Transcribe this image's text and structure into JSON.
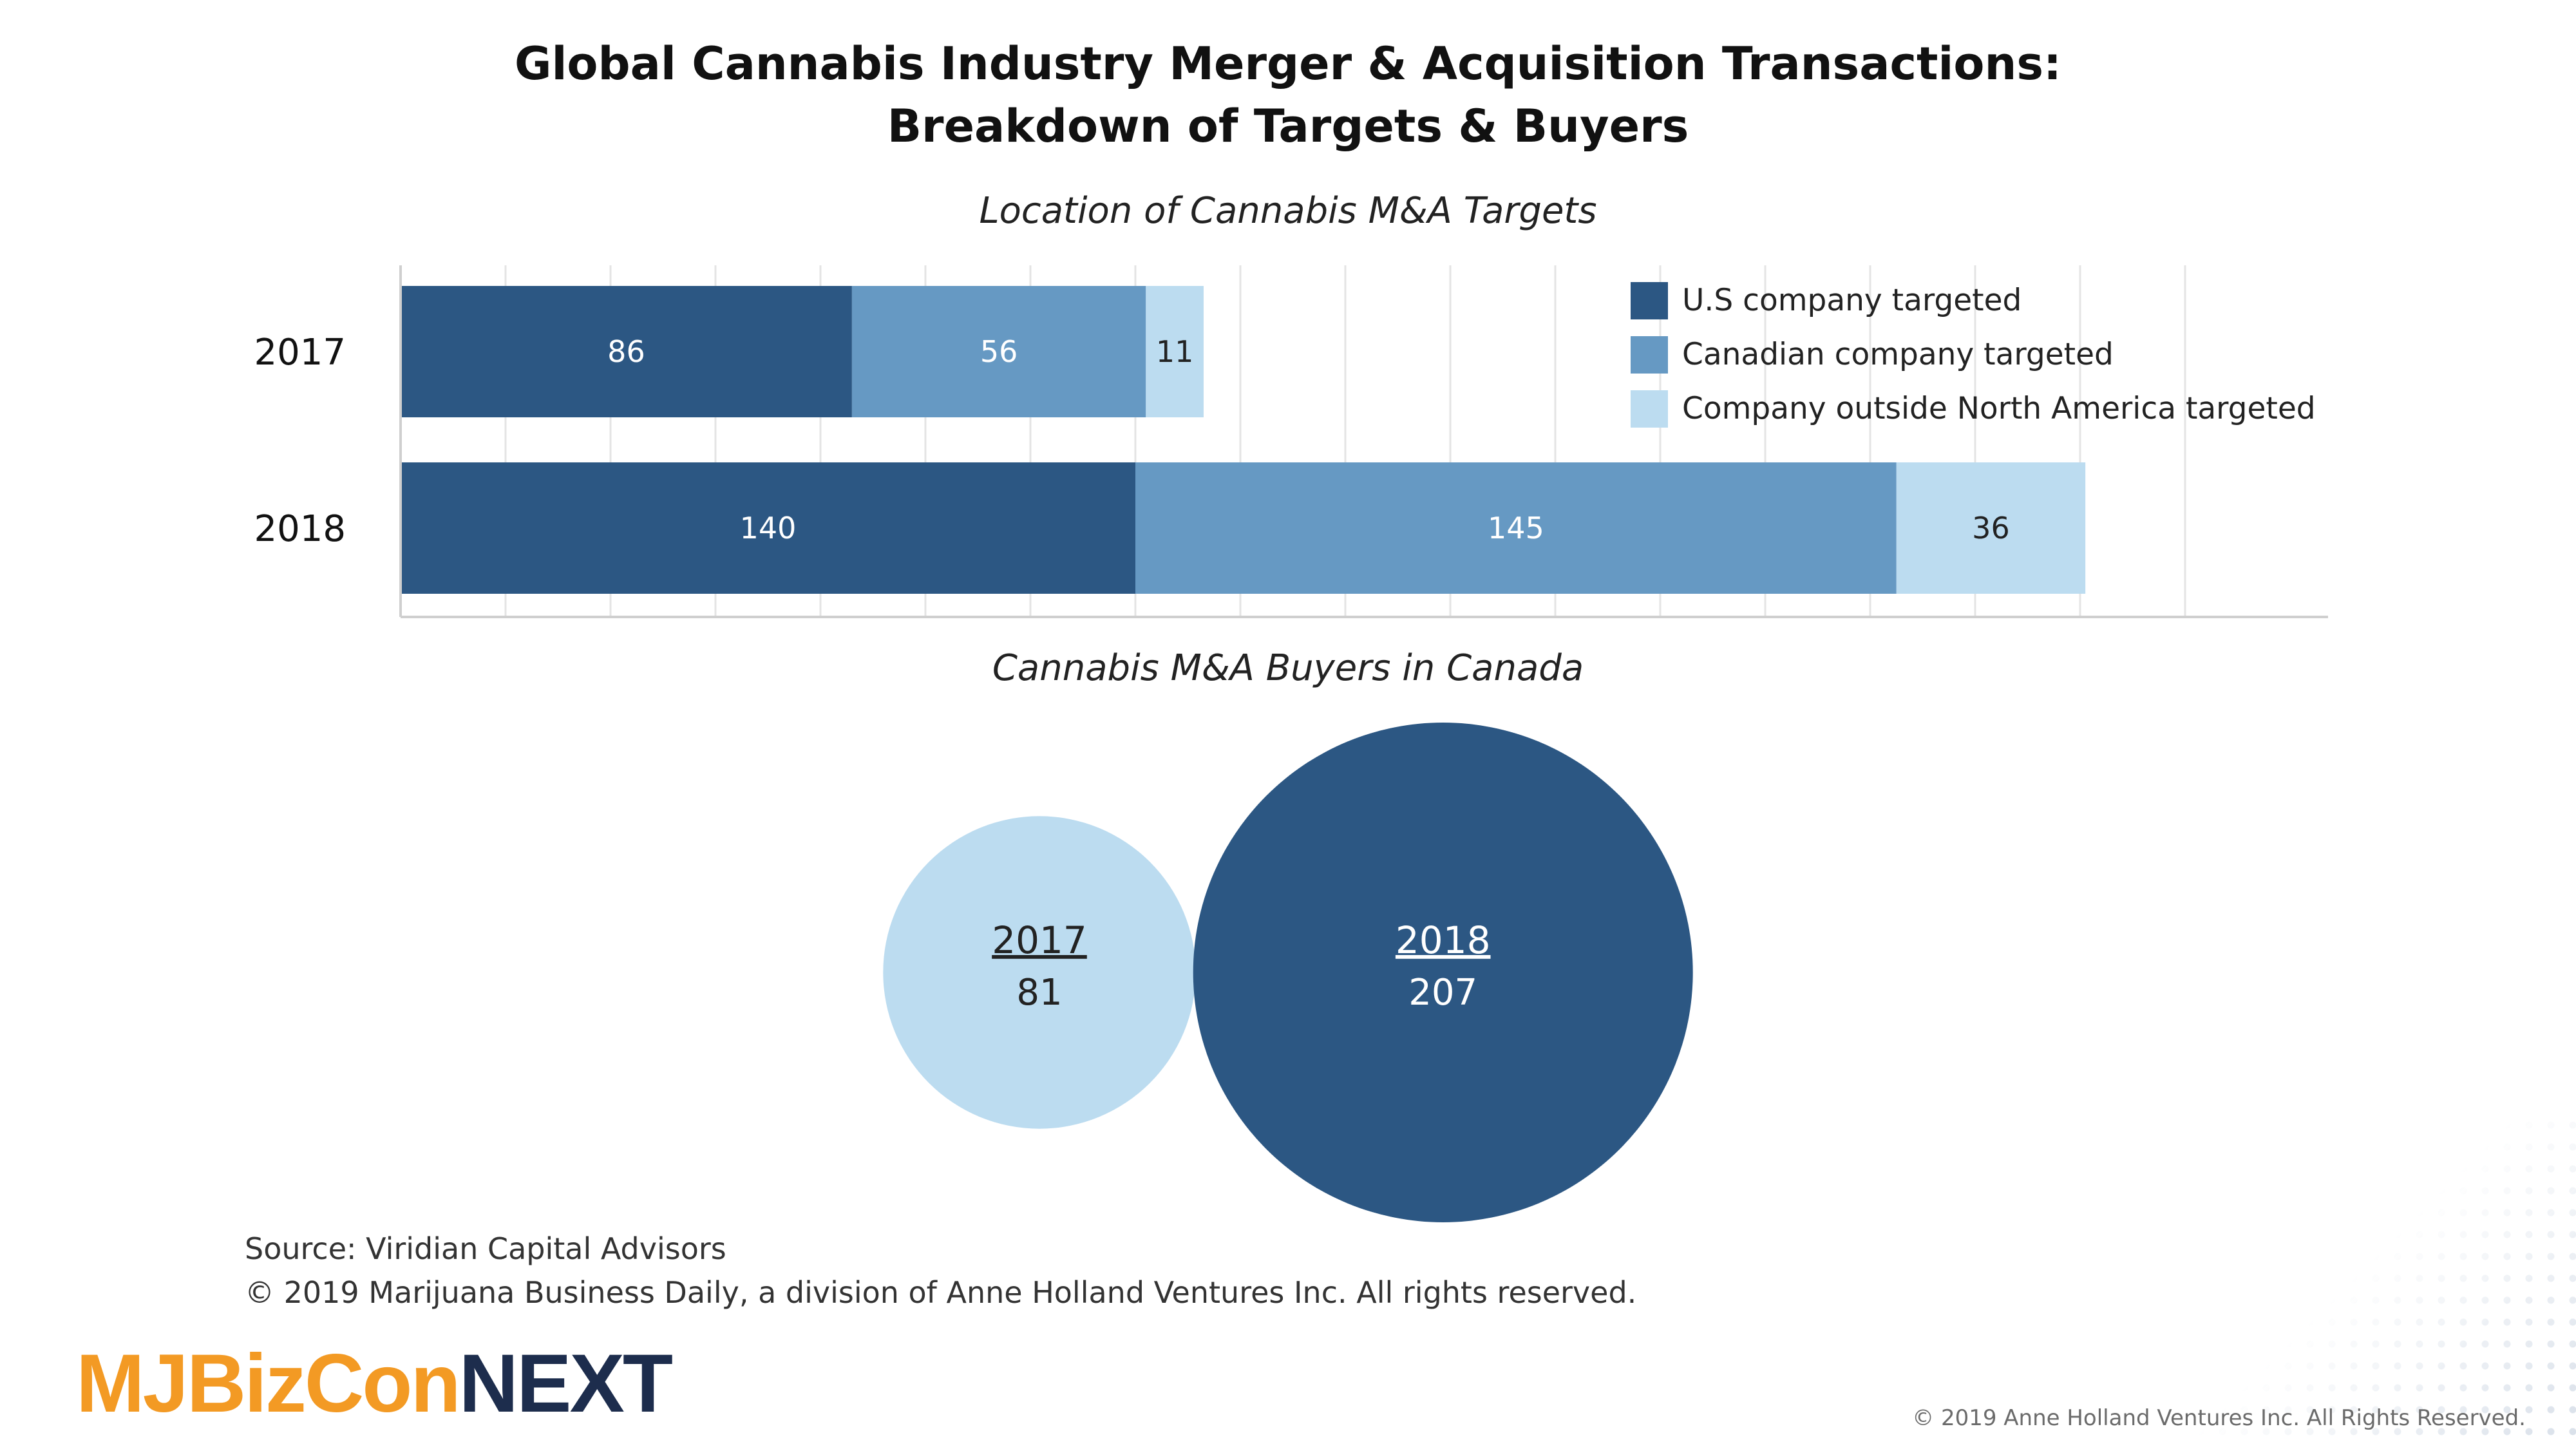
{
  "header": {
    "title_line1": "Global Cannabis Industry Merger & Acquisition Transactions:",
    "title_line2": "Breakdown of Targets & Buyers"
  },
  "chart_data": [
    {
      "type": "bar",
      "orientation": "horizontal",
      "stacked": true,
      "title": "Location of Cannabis M&A Targets",
      "categories": [
        "2017",
        "2018"
      ],
      "series": [
        {
          "name": "U.S company targeted",
          "values": [
            86,
            140
          ],
          "color": "#2c5783",
          "label_color": "#ffffff"
        },
        {
          "name": "Canadian company targeted",
          "values": [
            56,
            145
          ],
          "color": "#6699c3",
          "label_color": "#ffffff"
        },
        {
          "name": "Company outside North America targeted",
          "values": [
            11,
            36
          ],
          "color": "#bcdcf0",
          "label_color": "#222222"
        }
      ],
      "xlim": [
        0,
        340
      ],
      "x_gridline_step": 20,
      "grid": true,
      "legend_position": "top-right"
    },
    {
      "type": "bubble",
      "title": "Cannabis M&A Buyers in Canada",
      "points": [
        {
          "label": "2017",
          "value": 81,
          "color": "#bcdcf0",
          "text_color": "#222222"
        },
        {
          "label": "2018",
          "value": 207,
          "color": "#2c5783",
          "text_color": "#ffffff"
        }
      ]
    }
  ],
  "footer": {
    "source": "Source: Viridian Capital Advisors",
    "copyright": "© 2019 Marijuana Business Daily, a division of Anne Holland Ventures Inc. All rights reserved.",
    "brand_part1": "MJBizCon",
    "brand_part2": "NEXT",
    "corner_copyright": "© 2019 Anne Holland Ventures Inc. All Rights Reserved."
  }
}
